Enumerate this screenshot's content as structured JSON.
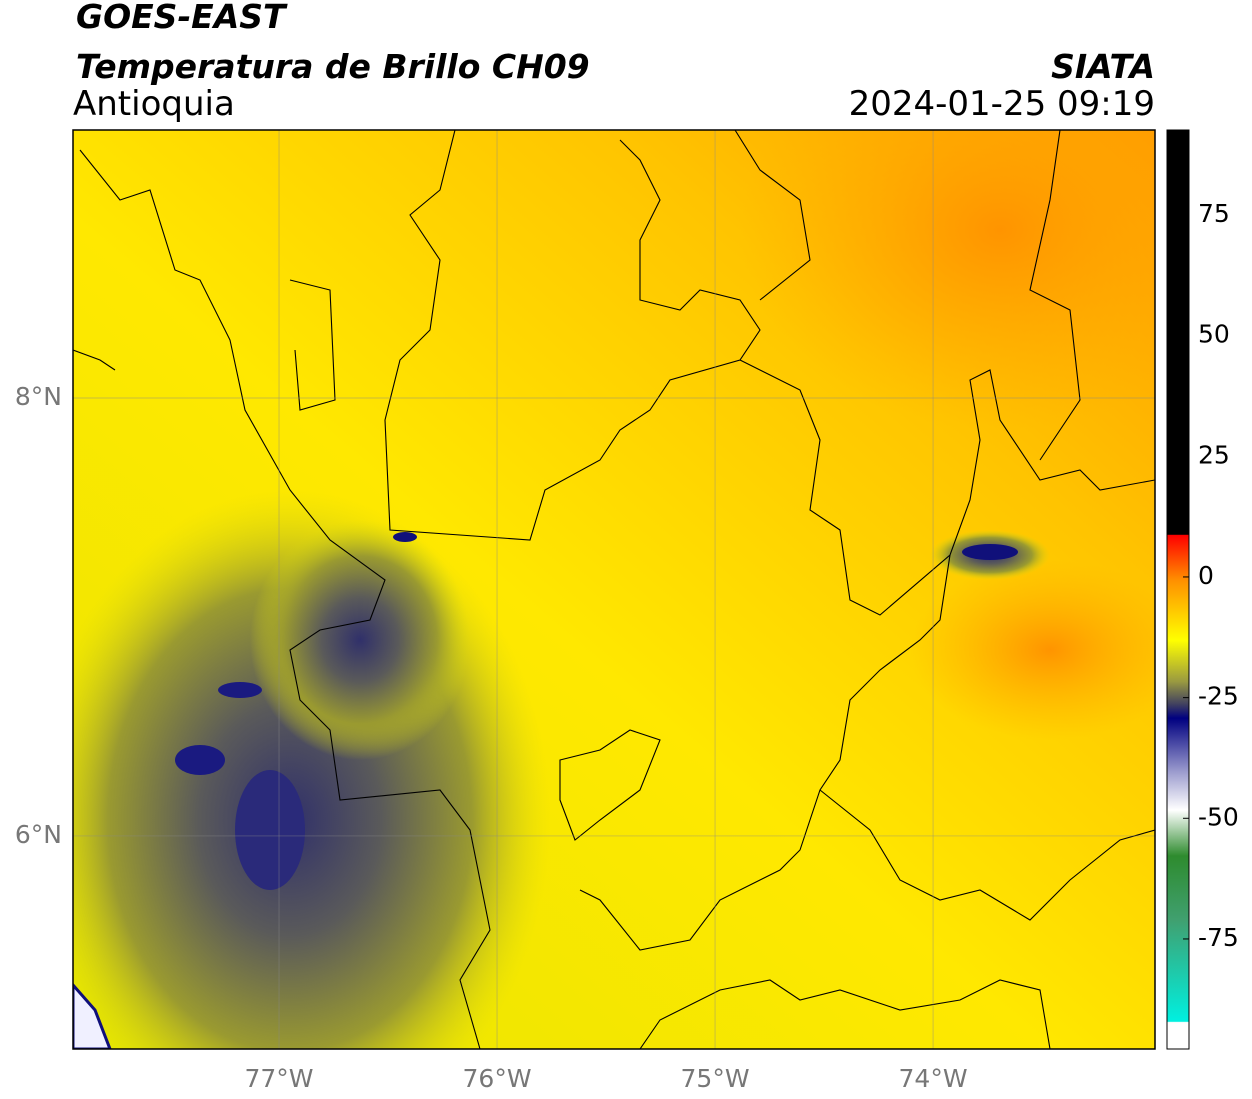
{
  "header": {
    "title": "GOES-EAST",
    "subtitle": "Temperatura de Brillo CH09",
    "region": "Antioquia",
    "source": "SIATA",
    "timestamp": "2024-01-25 09:19"
  },
  "map": {
    "xlim": [
      -77.945,
      -72.982
    ],
    "ylim": [
      5.027,
      9.224
    ],
    "lon_ticks": [
      {
        "value": -77,
        "label": "77°W"
      },
      {
        "value": -76,
        "label": "76°W"
      },
      {
        "value": -75,
        "label": "75°W"
      },
      {
        "value": -74,
        "label": "74°W"
      }
    ],
    "lat_ticks": [
      {
        "value": 8,
        "label": "8°N"
      },
      {
        "value": 6,
        "label": "6°N"
      }
    ]
  },
  "colorbar": {
    "lim": [
      -97.8,
      92.6
    ],
    "ticks": [
      75,
      50,
      25,
      0,
      -25,
      -50,
      -75
    ]
  }
}
